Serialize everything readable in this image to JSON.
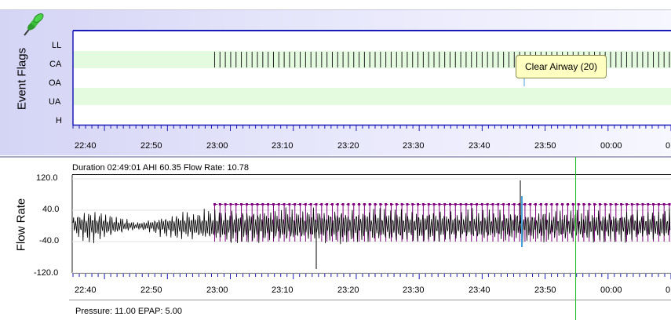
{
  "event_flags": {
    "title": "Event Flags",
    "rows": [
      "LL",
      "CA",
      "OA",
      "UA",
      "H"
    ],
    "tooltip": "Clear Airway (20)",
    "pin_icon": "pushpin-icon"
  },
  "flow_rate": {
    "title": "Flow Rate",
    "info": "Duration 02:49:01 AHI 60.35 Flow Rate: 10.78",
    "y_ticks": [
      "120.0",
      "40.0",
      "-40.0",
      "-120.0"
    ]
  },
  "pressure": {
    "info": "Pressure: 11.00 EPAP: 5.00"
  },
  "x_ticks": [
    "22:40",
    "22:50",
    "23:00",
    "23:10",
    "23:20",
    "23:30",
    "23:40",
    "23:50",
    "00:00",
    "0"
  ],
  "colors": {
    "axis_blue": "#1a1ab8",
    "band_green": "#e4fbe0",
    "flag_purple": "#800080",
    "cursor_green": "#1fbf1f",
    "waveform": "#000000"
  },
  "chart_data": [
    {
      "type": "scatter",
      "title": "",
      "ylabel": "Event Flags",
      "categories": [
        "LL",
        "CA",
        "OA",
        "UA",
        "H"
      ],
      "series": [
        {
          "name": "CA",
          "x_start": "22:57:30",
          "x_end": "00:10:00",
          "interval_minutes": 0.85
        }
      ],
      "xlim": [
        "22:35",
        "00:10"
      ]
    },
    {
      "type": "line",
      "title": "",
      "ylabel": "Flow Rate",
      "ylim": [
        -120,
        120
      ],
      "yticks": [
        120,
        40,
        -40,
        -120
      ],
      "xlim": [
        "22:35",
        "00:10"
      ],
      "series": [
        {
          "name": "Flow Rate",
          "amplitude_profile": [
            [
              "22:35",
              30
            ],
            [
              "22:38",
              45
            ],
            [
              "22:45",
              10
            ],
            [
              "22:50",
              30
            ],
            [
              "22:58",
              45
            ],
            [
              "23:20",
              45
            ],
            [
              "23:40",
              40
            ],
            [
              "00:10",
              40
            ]
          ]
        }
      ],
      "markers": {
        "y": 55,
        "x_start": "22:57:30",
        "interval_minutes": 0.85
      },
      "cursor_x": "23:54:10"
    }
  ]
}
